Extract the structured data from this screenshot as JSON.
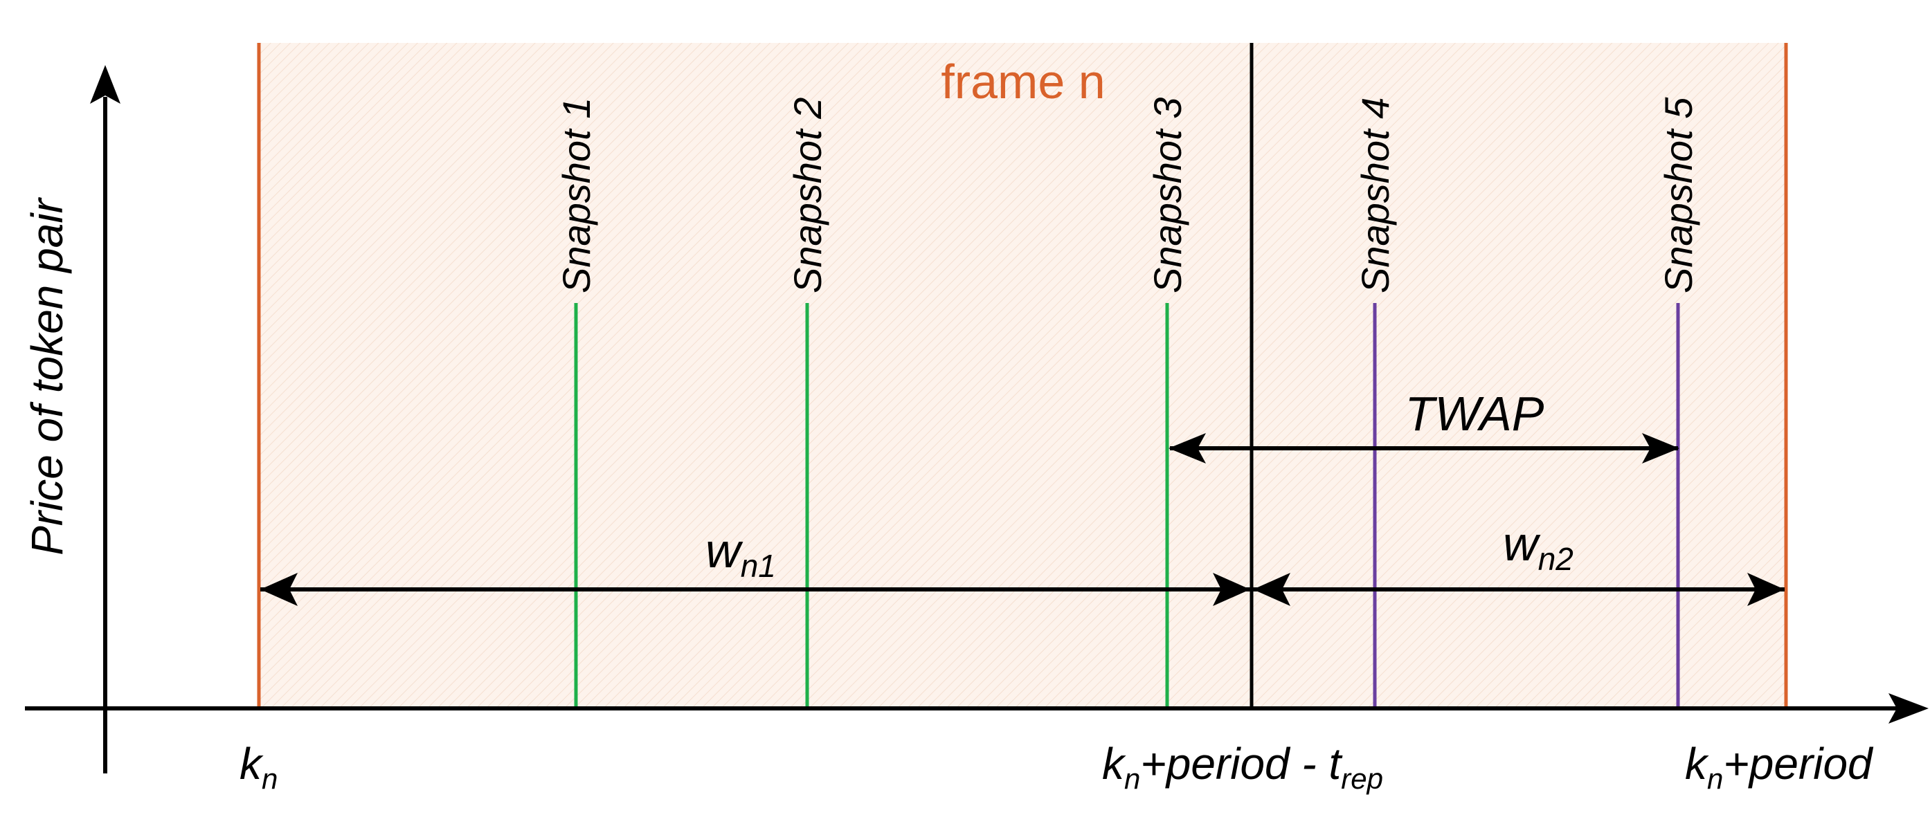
{
  "frame": {
    "label": "frame n",
    "color": "#D9622B",
    "fill": "#FDF3EC"
  },
  "y_axis": {
    "label": "Price of token pair"
  },
  "x_labels": {
    "start": {
      "base": "k",
      "sub": "n",
      "rest": ""
    },
    "middle": {
      "base": "k",
      "sub": "n",
      "rest": "+period - t",
      "sub2": "rep"
    },
    "end": {
      "base": "k",
      "sub": "n",
      "rest": "+period"
    }
  },
  "snapshots": [
    {
      "label": "Snapshot 1",
      "color": "#1FB04A"
    },
    {
      "label": "Snapshot 2",
      "color": "#1FB04A"
    },
    {
      "label": "Snapshot 3",
      "color": "#1FB04A"
    },
    {
      "label": "Snapshot 4",
      "color": "#6A3FA0"
    },
    {
      "label": "Snapshot 5",
      "color": "#6A3FA0"
    }
  ],
  "arrows": {
    "twap": {
      "label": "TWAP"
    },
    "w1": {
      "base": "w",
      "sub": "n1"
    },
    "w2": {
      "base": "w",
      "sub": "n2"
    }
  }
}
